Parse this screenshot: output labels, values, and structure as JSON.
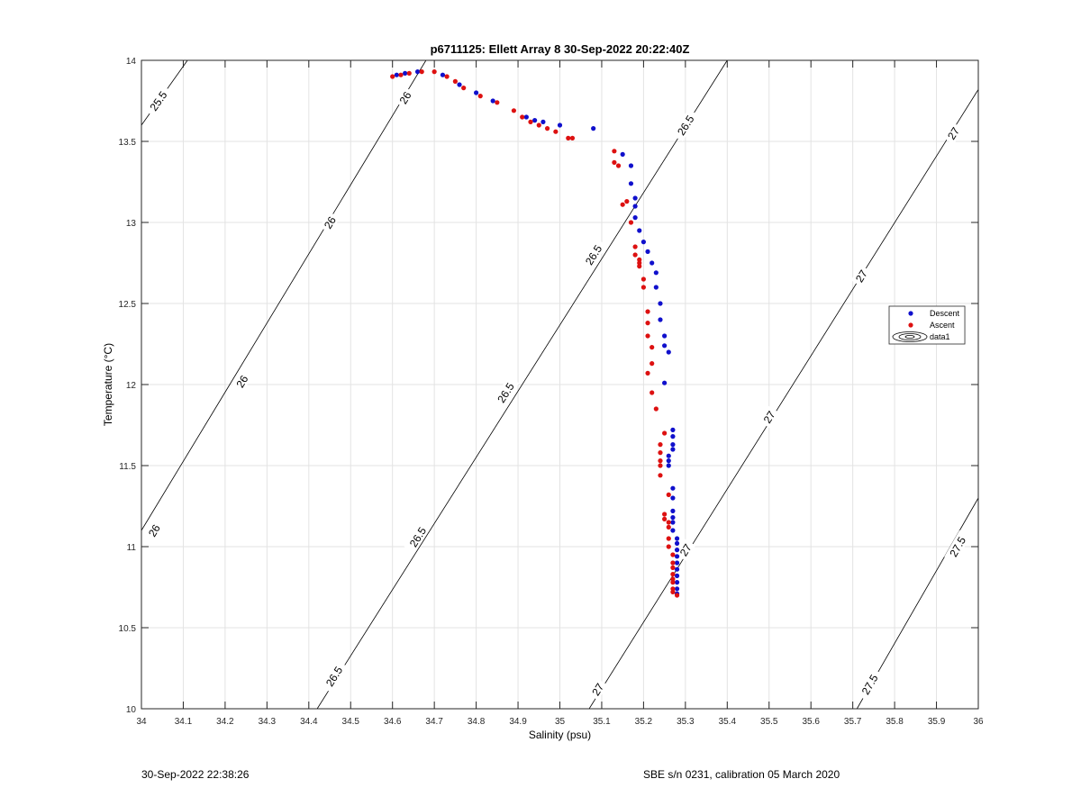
{
  "chart_data": {
    "type": "scatter",
    "title": "p6711125: Ellett Array 8 30-Sep-2022 20:22:40Z",
    "xlabel": "Salinity (psu)",
    "ylabel": "Temperature (°C)",
    "xlim": [
      34,
      36
    ],
    "ylim": [
      10,
      14
    ],
    "x_ticks": [
      "34",
      "34.1",
      "34.2",
      "34.3",
      "34.4",
      "34.5",
      "34.6",
      "34.7",
      "34.8",
      "34.9",
      "35",
      "35.1",
      "35.2",
      "35.3",
      "35.4",
      "35.5",
      "35.6",
      "35.7",
      "35.8",
      "35.9",
      "36"
    ],
    "y_ticks": [
      "10",
      "10.5",
      "11",
      "11.5",
      "12",
      "12.5",
      "13",
      "13.5",
      "14"
    ],
    "grid": true,
    "legend_position": "right",
    "legend": [
      "Descent",
      "Ascent",
      "data1"
    ],
    "colors": {
      "descent": "#1010cc",
      "ascent": "#dd1111",
      "contour": "#000000",
      "grid": "#e3e3e3"
    },
    "series": [
      {
        "name": "Descent",
        "points": [
          [
            34.61,
            13.91
          ],
          [
            34.63,
            13.92
          ],
          [
            34.66,
            13.93
          ],
          [
            34.72,
            13.91
          ],
          [
            34.76,
            13.85
          ],
          [
            34.8,
            13.8
          ],
          [
            34.84,
            13.75
          ],
          [
            34.92,
            13.65
          ],
          [
            34.94,
            13.63
          ],
          [
            34.96,
            13.62
          ],
          [
            35.0,
            13.6
          ],
          [
            35.08,
            13.58
          ],
          [
            35.15,
            13.42
          ],
          [
            35.17,
            13.35
          ],
          [
            35.17,
            13.24
          ],
          [
            35.18,
            13.15
          ],
          [
            35.18,
            13.1
          ],
          [
            35.18,
            13.03
          ],
          [
            35.19,
            12.95
          ],
          [
            35.2,
            12.88
          ],
          [
            35.21,
            12.82
          ],
          [
            35.22,
            12.75
          ],
          [
            35.23,
            12.69
          ],
          [
            35.23,
            12.6
          ],
          [
            35.24,
            12.5
          ],
          [
            35.24,
            12.4
          ],
          [
            35.25,
            12.3
          ],
          [
            35.25,
            12.24
          ],
          [
            35.26,
            12.2
          ],
          [
            35.25,
            12.01
          ],
          [
            35.27,
            11.72
          ],
          [
            35.27,
            11.68
          ],
          [
            35.27,
            11.63
          ],
          [
            35.27,
            11.6
          ],
          [
            35.26,
            11.56
          ],
          [
            35.26,
            11.53
          ],
          [
            35.26,
            11.5
          ],
          [
            35.27,
            11.36
          ],
          [
            35.27,
            11.3
          ],
          [
            35.27,
            11.22
          ],
          [
            35.27,
            11.18
          ],
          [
            35.27,
            11.15
          ],
          [
            35.27,
            11.1
          ],
          [
            35.28,
            11.05
          ],
          [
            35.28,
            11.02
          ],
          [
            35.28,
            10.98
          ],
          [
            35.28,
            10.94
          ],
          [
            35.28,
            10.9
          ],
          [
            35.28,
            10.86
          ],
          [
            35.28,
            10.82
          ],
          [
            35.28,
            10.78
          ],
          [
            35.28,
            10.74
          ],
          [
            35.28,
            10.71
          ]
        ]
      },
      {
        "name": "Ascent",
        "points": [
          [
            34.6,
            13.9
          ],
          [
            34.62,
            13.91
          ],
          [
            34.64,
            13.92
          ],
          [
            34.67,
            13.93
          ],
          [
            34.7,
            13.93
          ],
          [
            34.73,
            13.9
          ],
          [
            34.75,
            13.87
          ],
          [
            34.77,
            13.83
          ],
          [
            34.81,
            13.78
          ],
          [
            34.85,
            13.74
          ],
          [
            34.89,
            13.69
          ],
          [
            34.91,
            13.65
          ],
          [
            34.93,
            13.62
          ],
          [
            34.95,
            13.6
          ],
          [
            34.97,
            13.58
          ],
          [
            34.99,
            13.56
          ],
          [
            35.02,
            13.52
          ],
          [
            35.03,
            13.52
          ],
          [
            35.13,
            13.44
          ],
          [
            35.13,
            13.37
          ],
          [
            35.14,
            13.35
          ],
          [
            35.16,
            13.13
          ],
          [
            35.15,
            13.11
          ],
          [
            35.17,
            13.0
          ],
          [
            35.18,
            12.85
          ],
          [
            35.18,
            12.8
          ],
          [
            35.19,
            12.77
          ],
          [
            35.19,
            12.75
          ],
          [
            35.19,
            12.73
          ],
          [
            35.2,
            12.65
          ],
          [
            35.2,
            12.6
          ],
          [
            35.21,
            12.45
          ],
          [
            35.21,
            12.38
          ],
          [
            35.21,
            12.3
          ],
          [
            35.22,
            12.23
          ],
          [
            35.22,
            12.13
          ],
          [
            35.21,
            12.07
          ],
          [
            35.22,
            11.95
          ],
          [
            35.23,
            11.85
          ],
          [
            35.25,
            11.7
          ],
          [
            35.24,
            11.63
          ],
          [
            35.24,
            11.58
          ],
          [
            35.24,
            11.53
          ],
          [
            35.24,
            11.5
          ],
          [
            35.24,
            11.44
          ],
          [
            35.26,
            11.32
          ],
          [
            35.25,
            11.2
          ],
          [
            35.25,
            11.17
          ],
          [
            35.26,
            11.15
          ],
          [
            35.26,
            11.12
          ],
          [
            35.26,
            11.05
          ],
          [
            35.26,
            11.0
          ],
          [
            35.27,
            10.95
          ],
          [
            35.27,
            10.9
          ],
          [
            35.27,
            10.87
          ],
          [
            35.27,
            10.83
          ],
          [
            35.27,
            10.8
          ],
          [
            35.27,
            10.78
          ],
          [
            35.27,
            10.74
          ],
          [
            35.27,
            10.72
          ],
          [
            35.28,
            10.7
          ]
        ]
      }
    ],
    "contours": [
      {
        "label": "25.5",
        "points": [
          [
            34.0,
            13.6
          ],
          [
            34.11,
            14.0
          ]
        ],
        "labels_at": [
          [
            34.04,
            13.75
          ]
        ]
      },
      {
        "label": "26",
        "points": [
          [
            34.0,
            11.1
          ],
          [
            34.68,
            14.0
          ]
        ],
        "labels_at": [
          [
            34.63,
            13.77
          ],
          [
            34.45,
            13.0
          ],
          [
            34.24,
            12.02
          ],
          [
            34.03,
            11.1
          ]
        ]
      },
      {
        "label": "26.5",
        "points": [
          [
            34.42,
            10.0
          ],
          [
            35.4,
            14.0
          ]
        ],
        "labels_at": [
          [
            35.3,
            13.6
          ],
          [
            35.08,
            12.8
          ],
          [
            34.87,
            11.95
          ],
          [
            34.66,
            11.06
          ],
          [
            34.46,
            10.2
          ]
        ]
      },
      {
        "label": "27",
        "points": [
          [
            35.07,
            10.0
          ],
          [
            36.0,
            13.82
          ]
        ],
        "labels_at": [
          [
            35.94,
            13.55
          ],
          [
            35.72,
            12.67
          ],
          [
            35.5,
            11.8
          ],
          [
            35.3,
            10.98
          ],
          [
            35.09,
            10.12
          ]
        ]
      },
      {
        "label": "27.5",
        "points": [
          [
            35.71,
            10.0
          ],
          [
            36.0,
            11.3
          ]
        ],
        "labels_at": [
          [
            35.95,
            11.0
          ],
          [
            35.74,
            10.15
          ]
        ]
      }
    ]
  },
  "footer": {
    "timestamp": "30-Sep-2022 22:38:26",
    "instrument": "SBE s/n 0231, calibration 05 March 2020"
  }
}
